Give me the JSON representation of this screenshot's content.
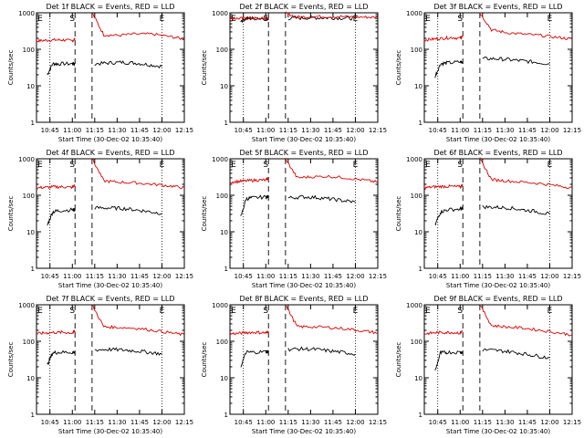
{
  "colors": {
    "events": "#000000",
    "lld": "#dd0000",
    "background": "#ffffff",
    "axis": "#000000"
  },
  "chart_data": [
    {
      "type": "line",
      "title": "Det 1f BLACK = Events, RED = LLD",
      "xlabel": "Start Time (30-Dec-02 10:35:40)",
      "ylabel": "Counts/sec",
      "ylim": [
        1,
        1000
      ],
      "yscale": "log",
      "xlim": [
        10.6,
        12.25
      ],
      "xticks": [
        "10:45",
        "11:00",
        "11:15",
        "11:30",
        "11:45",
        "12:00",
        "12:15"
      ],
      "yticks": [
        "1",
        "10",
        "100",
        "1000"
      ],
      "markers": [
        {
          "label": "S",
          "x": 11.0
        },
        {
          "label": "E",
          "x": 12.0
        }
      ],
      "series": [
        {
          "name": "Events",
          "x": [
            10.72,
            10.78,
            10.85,
            11.0,
            11.03
          ],
          "values": [
            20,
            40,
            40,
            40,
            40
          ]
        },
        {
          "name": "LLD",
          "x": [
            10.6,
            10.7,
            10.8,
            10.9,
            11.0,
            11.03
          ],
          "values": [
            170,
            175,
            180,
            180,
            170,
            190
          ]
        },
        {
          "name": "Events (post)",
          "x": [
            11.25,
            11.4,
            11.55,
            11.7,
            11.85,
            12.0
          ],
          "values": [
            40,
            42,
            44,
            42,
            38,
            34
          ]
        },
        {
          "name": "LLD (post)",
          "x": [
            11.22,
            11.35,
            11.5,
            11.7,
            11.9,
            12.1,
            12.25
          ],
          "values": [
            1000,
            250,
            240,
            260,
            260,
            220,
            190
          ]
        }
      ]
    },
    {
      "type": "line",
      "title": "Det 2f BLACK = Events, RED = LLD",
      "xlabel": "Start Time (30-Dec-02 10:35:40)",
      "ylabel": "Counts/sec",
      "ylim": [
        1,
        1000
      ],
      "yscale": "log",
      "xlim": [
        10.6,
        12.25
      ],
      "xticks": [
        "10:45",
        "11:00",
        "11:15",
        "11:30",
        "11:45",
        "12:00",
        "12:15"
      ],
      "yticks": [
        "1",
        "10",
        "100",
        "1000"
      ],
      "markers": [
        {
          "label": "S",
          "x": 11.0
        },
        {
          "label": "E",
          "x": 12.0
        }
      ],
      "series": [
        {
          "name": "Events",
          "x": [
            10.72,
            10.78,
            10.85,
            11.0,
            11.03
          ],
          "values": [
            600,
            700,
            700,
            700,
            700
          ]
        },
        {
          "name": "LLD",
          "x": [
            10.6,
            10.7,
            10.8,
            10.9,
            11.0,
            11.03
          ],
          "values": [
            700,
            700,
            710,
            700,
            700,
            720
          ]
        },
        {
          "name": "Events (post)",
          "x": [
            11.25,
            11.4,
            11.55,
            11.7,
            11.85,
            12.0
          ],
          "values": [
            700,
            720,
            730,
            730,
            720,
            700
          ]
        },
        {
          "name": "LLD (post)",
          "x": [
            11.22,
            11.35,
            11.5,
            11.7,
            11.9,
            12.1,
            12.25
          ],
          "values": [
            1000,
            760,
            780,
            790,
            780,
            760,
            750
          ]
        }
      ]
    },
    {
      "type": "line",
      "title": "Det 3f BLACK = Events, RED = LLD",
      "xlabel": "Start Time (30-Dec-02 10:35:40)",
      "ylabel": "Counts/sec",
      "ylim": [
        1,
        1000
      ],
      "yscale": "log",
      "xlim": [
        10.6,
        12.25
      ],
      "xticks": [
        "10:45",
        "11:00",
        "11:15",
        "11:30",
        "11:45",
        "12:00",
        "12:15"
      ],
      "yticks": [
        "1",
        "10",
        "100",
        "1000"
      ],
      "markers": [
        {
          "label": "S",
          "x": 11.0
        },
        {
          "label": "E",
          "x": 12.0
        }
      ],
      "series": [
        {
          "name": "Events",
          "x": [
            10.72,
            10.78,
            10.85,
            11.0,
            11.03
          ],
          "values": [
            18,
            40,
            42,
            45,
            45
          ]
        },
        {
          "name": "LLD",
          "x": [
            10.6,
            10.7,
            10.8,
            10.9,
            11.0,
            11.03
          ],
          "values": [
            180,
            190,
            200,
            210,
            200,
            230
          ]
        },
        {
          "name": "Events (post)",
          "x": [
            11.25,
            11.4,
            11.55,
            11.7,
            11.85,
            12.0
          ],
          "values": [
            55,
            55,
            52,
            48,
            44,
            40
          ]
        },
        {
          "name": "LLD (post)",
          "x": [
            11.22,
            11.35,
            11.5,
            11.7,
            11.9,
            12.1,
            12.25
          ],
          "values": [
            1000,
            340,
            290,
            260,
            240,
            210,
            190
          ]
        }
      ]
    },
    {
      "type": "line",
      "title": "Det 4f BLACK = Events, RED = LLD",
      "xlabel": "Start Time (30-Dec-02 10:35:40)",
      "ylabel": "Counts/sec",
      "ylim": [
        1,
        1000
      ],
      "yscale": "log",
      "xlim": [
        10.6,
        12.25
      ],
      "xticks": [
        "10:45",
        "11:00",
        "11:15",
        "11:30",
        "11:45",
        "12:00",
        "12:15"
      ],
      "yticks": [
        "1",
        "10",
        "100",
        "1000"
      ],
      "markers": [
        {
          "label": "S",
          "x": 11.0
        },
        {
          "label": "E",
          "x": 12.0
        }
      ],
      "series": [
        {
          "name": "Events",
          "x": [
            10.72,
            10.78,
            10.85,
            11.0,
            11.03
          ],
          "values": [
            15,
            35,
            38,
            40,
            40
          ]
        },
        {
          "name": "LLD",
          "x": [
            10.6,
            10.7,
            10.8,
            10.9,
            11.0,
            11.03
          ],
          "values": [
            160,
            165,
            170,
            170,
            165,
            190
          ]
        },
        {
          "name": "Events (post)",
          "x": [
            11.25,
            11.4,
            11.55,
            11.7,
            11.85,
            12.0
          ],
          "values": [
            45,
            45,
            44,
            40,
            36,
            32
          ]
        },
        {
          "name": "LLD (post)",
          "x": [
            11.22,
            11.35,
            11.5,
            11.7,
            11.9,
            12.1,
            12.25
          ],
          "values": [
            1000,
            250,
            230,
            220,
            200,
            180,
            160
          ]
        }
      ]
    },
    {
      "type": "line",
      "title": "Det 5f BLACK = Events, RED = LLD",
      "xlabel": "Start Time (30-Dec-02 10:35:40)",
      "ylabel": "Counts/sec",
      "ylim": [
        1,
        1000
      ],
      "yscale": "log",
      "xlim": [
        10.6,
        12.25
      ],
      "xticks": [
        "10:45",
        "11:00",
        "11:15",
        "11:30",
        "11:45",
        "12:00",
        "12:15"
      ],
      "yticks": [
        "1",
        "10",
        "100",
        "1000"
      ],
      "markers": [
        {
          "label": "S",
          "x": 11.0
        },
        {
          "label": "E",
          "x": 12.0
        }
      ],
      "series": [
        {
          "name": "Events",
          "x": [
            10.72,
            10.78,
            10.85,
            11.0,
            11.03
          ],
          "values": [
            25,
            80,
            85,
            90,
            90
          ]
        },
        {
          "name": "LLD",
          "x": [
            10.6,
            10.7,
            10.8,
            10.9,
            11.0,
            11.03
          ],
          "values": [
            230,
            240,
            250,
            260,
            260,
            300
          ]
        },
        {
          "name": "Events (post)",
          "x": [
            11.25,
            11.4,
            11.55,
            11.7,
            11.85,
            12.0
          ],
          "values": [
            85,
            90,
            88,
            80,
            72,
            65
          ]
        },
        {
          "name": "LLD (post)",
          "x": [
            11.22,
            11.35,
            11.5,
            11.7,
            11.9,
            12.1,
            12.25
          ],
          "values": [
            1000,
            300,
            320,
            330,
            300,
            260,
            230
          ]
        }
      ]
    },
    {
      "type": "line",
      "title": "Det 6f BLACK = Events, RED = LLD",
      "xlabel": "Start Time (30-Dec-02 10:35:40)",
      "ylabel": "Counts/sec",
      "ylim": [
        1,
        1000
      ],
      "yscale": "log",
      "xlim": [
        10.6,
        12.25
      ],
      "xticks": [
        "10:45",
        "11:00",
        "11:15",
        "11:30",
        "11:45",
        "12:00",
        "12:15"
      ],
      "yticks": [
        "1",
        "10",
        "100",
        "1000"
      ],
      "markers": [
        {
          "label": "S",
          "x": 11.0
        },
        {
          "label": "E",
          "x": 12.0
        }
      ],
      "series": [
        {
          "name": "Events",
          "x": [
            10.72,
            10.78,
            10.85,
            11.0,
            11.03
          ],
          "values": [
            15,
            35,
            40,
            42,
            42
          ]
        },
        {
          "name": "LLD",
          "x": [
            10.6,
            10.7,
            10.8,
            10.9,
            11.0,
            11.03
          ],
          "values": [
            160,
            170,
            175,
            175,
            170,
            200
          ]
        },
        {
          "name": "Events (post)",
          "x": [
            11.25,
            11.4,
            11.55,
            11.7,
            11.85,
            12.0
          ],
          "values": [
            48,
            47,
            45,
            40,
            36,
            30
          ]
        },
        {
          "name": "LLD (post)",
          "x": [
            11.22,
            11.35,
            11.5,
            11.7,
            11.9,
            12.1,
            12.25
          ],
          "values": [
            1000,
            270,
            250,
            230,
            210,
            180,
            160
          ]
        }
      ]
    },
    {
      "type": "line",
      "title": "Det 7f BLACK = Events, RED = LLD",
      "xlabel": "Start Time (30-Dec-02 10:35:40)",
      "ylabel": "Counts/sec",
      "ylim": [
        1,
        1000
      ],
      "yscale": "log",
      "xlim": [
        10.6,
        12.25
      ],
      "xticks": [
        "10:45",
        "11:00",
        "11:15",
        "11:30",
        "11:45",
        "12:00",
        "12:15"
      ],
      "yticks": [
        "1",
        "10",
        "100",
        "1000"
      ],
      "markers": [
        {
          "label": "S",
          "x": 11.0
        },
        {
          "label": "E",
          "x": 12.0
        }
      ],
      "series": [
        {
          "name": "Events",
          "x": [
            10.72,
            10.78,
            10.85,
            11.0,
            11.03
          ],
          "values": [
            22,
            48,
            50,
            50,
            50
          ]
        },
        {
          "name": "LLD",
          "x": [
            10.6,
            10.7,
            10.8,
            10.9,
            11.0,
            11.03
          ],
          "values": [
            160,
            170,
            175,
            175,
            170,
            190
          ]
        },
        {
          "name": "Events (post)",
          "x": [
            11.25,
            11.4,
            11.55,
            11.7,
            11.85,
            12.0
          ],
          "values": [
            58,
            60,
            58,
            55,
            50,
            45
          ]
        },
        {
          "name": "LLD (post)",
          "x": [
            11.22,
            11.35,
            11.5,
            11.7,
            11.9,
            12.1,
            12.25
          ],
          "values": [
            1000,
            250,
            240,
            230,
            200,
            170,
            150
          ]
        }
      ]
    },
    {
      "type": "line",
      "title": "Det 8f BLACK = Events, RED = LLD",
      "xlabel": "Start Time (30-Dec-02 10:35:40)",
      "ylabel": "Counts/sec",
      "ylim": [
        1,
        1000
      ],
      "yscale": "log",
      "xlim": [
        10.6,
        12.25
      ],
      "xticks": [
        "10:45",
        "11:00",
        "11:15",
        "11:30",
        "11:45",
        "12:00",
        "12:15"
      ],
      "yticks": [
        "1",
        "10",
        "100",
        "1000"
      ],
      "markers": [
        {
          "label": "S",
          "x": 11.0
        },
        {
          "label": "E",
          "x": 12.0
        }
      ],
      "series": [
        {
          "name": "Events",
          "x": [
            10.72,
            10.78,
            10.85,
            11.0,
            11.03
          ],
          "values": [
            20,
            50,
            50,
            52,
            52
          ]
        },
        {
          "name": "LLD",
          "x": [
            10.6,
            10.7,
            10.8,
            10.9,
            11.0,
            11.03
          ],
          "values": [
            160,
            165,
            175,
            175,
            170,
            190
          ]
        },
        {
          "name": "Events (post)",
          "x": [
            11.25,
            11.4,
            11.55,
            11.7,
            11.85,
            12.0
          ],
          "values": [
            60,
            62,
            60,
            55,
            50,
            45
          ]
        },
        {
          "name": "LLD (post)",
          "x": [
            11.22,
            11.35,
            11.5,
            11.7,
            11.9,
            12.1,
            12.25
          ],
          "values": [
            1000,
            250,
            250,
            240,
            220,
            190,
            170
          ]
        }
      ]
    },
    {
      "type": "line",
      "title": "Det 9f BLACK = Events, RED = LLD",
      "xlabel": "Start Time (30-Dec-02 10:35:40)",
      "ylabel": "Counts/sec",
      "ylim": [
        1,
        1000
      ],
      "yscale": "log",
      "xlim": [
        10.6,
        12.25
      ],
      "xticks": [
        "10:45",
        "11:00",
        "11:15",
        "11:30",
        "11:45",
        "12:00",
        "12:15"
      ],
      "yticks": [
        "1",
        "10",
        "100",
        "1000"
      ],
      "markers": [
        {
          "label": "S",
          "x": 11.0
        },
        {
          "label": "E",
          "x": 12.0
        }
      ],
      "series": [
        {
          "name": "Events",
          "x": [
            10.72,
            10.78,
            10.85,
            11.0,
            11.03
          ],
          "values": [
            15,
            48,
            50,
            50,
            50
          ]
        },
        {
          "name": "LLD",
          "x": [
            10.6,
            10.7,
            10.8,
            10.9,
            11.0,
            11.03
          ],
          "values": [
            160,
            170,
            175,
            175,
            170,
            195
          ]
        },
        {
          "name": "Events (post)",
          "x": [
            11.25,
            11.4,
            11.55,
            11.7,
            11.85,
            12.0
          ],
          "values": [
            58,
            56,
            52,
            46,
            40,
            35
          ]
        },
        {
          "name": "LLD (post)",
          "x": [
            11.22,
            11.35,
            11.5,
            11.7,
            11.9,
            12.1,
            12.25
          ],
          "values": [
            1000,
            270,
            250,
            230,
            200,
            170,
            150
          ]
        }
      ]
    }
  ]
}
